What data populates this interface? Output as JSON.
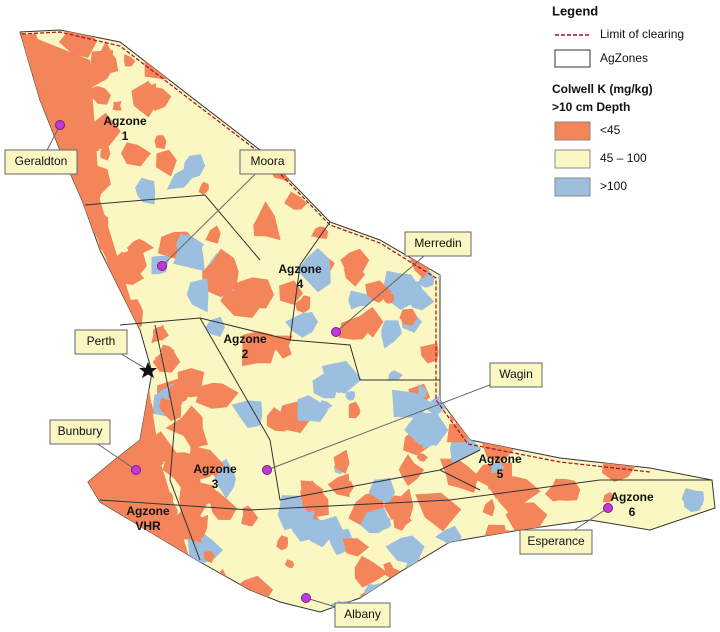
{
  "legend": {
    "title": "Legend",
    "lines": [
      {
        "label": "Limit of clearing",
        "color": "#a01020"
      },
      {
        "label": "AgZones",
        "color": "#333333"
      }
    ],
    "heading": [
      "Colwell K (mg/kg)",
      ">10 cm Depth"
    ],
    "classes": [
      {
        "label": "<45",
        "color": "#f4845a"
      },
      {
        "label": "45 – 100",
        "color": "#fbf7c2"
      },
      {
        "label": ">100",
        "color": "#9dbfdf"
      }
    ]
  },
  "zones": [
    {
      "lines": [
        "Agzone",
        "1"
      ]
    },
    {
      "lines": [
        "Agzone",
        "4"
      ]
    },
    {
      "lines": [
        "Agzone",
        "2"
      ]
    },
    {
      "lines": [
        "Agzone",
        "3"
      ]
    },
    {
      "lines": [
        "Agzone",
        "5"
      ]
    },
    {
      "lines": [
        "Agzone",
        "6"
      ]
    },
    {
      "lines": [
        "Agzone",
        "VHR"
      ]
    }
  ],
  "towns": [
    {
      "label": "Geraldton"
    },
    {
      "label": "Moora"
    },
    {
      "label": "Merredin"
    },
    {
      "label": "Perth"
    },
    {
      "label": "Wagin"
    },
    {
      "label": "Bunbury"
    },
    {
      "label": "Esperance"
    },
    {
      "label": "Albany"
    }
  ]
}
